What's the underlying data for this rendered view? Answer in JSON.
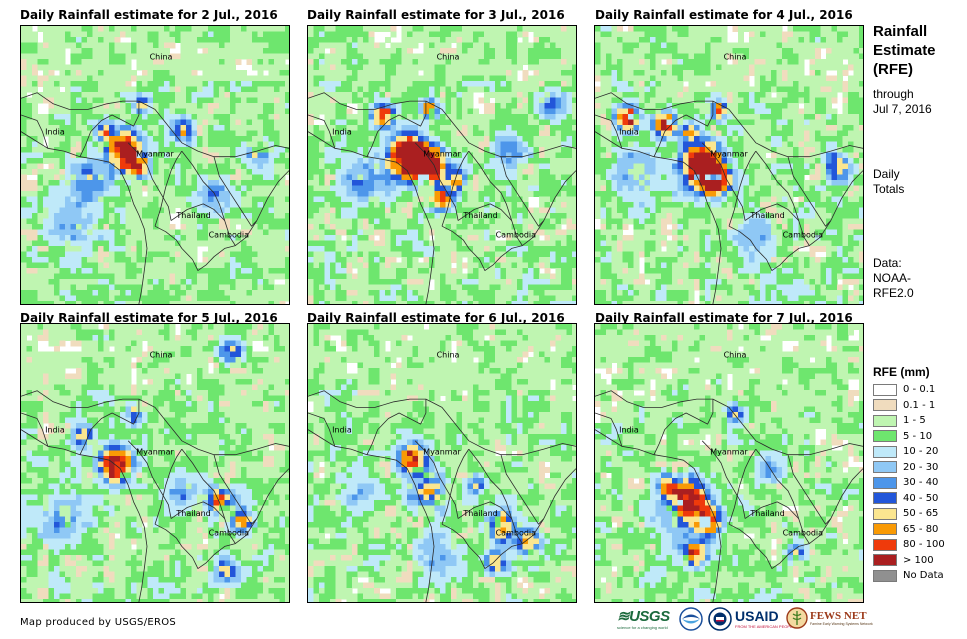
{
  "panels": [
    {
      "title": "Daily Rainfall estimate for 2 Jul., 2016",
      "seed": 11,
      "intensity": 1.0,
      "cores": [
        {
          "nx": 0.38,
          "ny": 0.44,
          "r": 0.075,
          "mm": 120
        },
        {
          "nx": 0.43,
          "ny": 0.5,
          "r": 0.05,
          "mm": 90
        },
        {
          "nx": 0.31,
          "ny": 0.37,
          "r": 0.04,
          "mm": 55
        },
        {
          "nx": 0.45,
          "ny": 0.28,
          "r": 0.035,
          "mm": 60
        },
        {
          "nx": 0.6,
          "ny": 0.37,
          "r": 0.05,
          "mm": 60
        },
        {
          "nx": 0.88,
          "ny": 0.45,
          "r": 0.06,
          "mm": 45
        },
        {
          "nx": 0.25,
          "ny": 0.55,
          "r": 0.09,
          "mm": 35
        },
        {
          "nx": 0.18,
          "ny": 0.7,
          "r": 0.12,
          "mm": 25
        },
        {
          "nx": 0.72,
          "ny": 0.6,
          "r": 0.08,
          "mm": 30
        }
      ],
      "labels": {
        "china": "China",
        "india": "India",
        "myanmar": "Myanmar",
        "thailand": "Thailand",
        "cambodia": "Cambodia"
      }
    },
    {
      "title": "Daily Rainfall estimate for 3 Jul., 2016",
      "seed": 23,
      "intensity": 1.1,
      "cores": [
        {
          "nx": 0.38,
          "ny": 0.47,
          "r": 0.09,
          "mm": 150
        },
        {
          "nx": 0.45,
          "ny": 0.5,
          "r": 0.07,
          "mm": 120
        },
        {
          "nx": 0.28,
          "ny": 0.32,
          "r": 0.05,
          "mm": 90
        },
        {
          "nx": 0.45,
          "ny": 0.3,
          "r": 0.04,
          "mm": 80
        },
        {
          "nx": 0.49,
          "ny": 0.62,
          "r": 0.05,
          "mm": 85
        },
        {
          "nx": 0.55,
          "ny": 0.55,
          "r": 0.05,
          "mm": 60
        },
        {
          "nx": 0.2,
          "ny": 0.55,
          "r": 0.1,
          "mm": 30
        },
        {
          "nx": 0.75,
          "ny": 0.45,
          "r": 0.08,
          "mm": 30
        },
        {
          "nx": 0.9,
          "ny": 0.28,
          "r": 0.06,
          "mm": 40
        }
      ],
      "labels": {
        "china": "China",
        "india": "India",
        "myanmar": "Myanmar",
        "thailand": "Thailand",
        "cambodia": "Cambodia"
      }
    },
    {
      "title": "Daily Rainfall estimate for 4 Jul., 2016",
      "seed": 37,
      "intensity": 1.1,
      "cores": [
        {
          "nx": 0.4,
          "ny": 0.5,
          "r": 0.09,
          "mm": 150
        },
        {
          "nx": 0.45,
          "ny": 0.55,
          "r": 0.06,
          "mm": 130
        },
        {
          "nx": 0.12,
          "ny": 0.33,
          "r": 0.05,
          "mm": 110
        },
        {
          "nx": 0.26,
          "ny": 0.35,
          "r": 0.05,
          "mm": 100
        },
        {
          "nx": 0.35,
          "ny": 0.38,
          "r": 0.04,
          "mm": 60
        },
        {
          "nx": 0.46,
          "ny": 0.3,
          "r": 0.04,
          "mm": 70
        },
        {
          "nx": 0.9,
          "ny": 0.5,
          "r": 0.06,
          "mm": 55
        },
        {
          "nx": 0.15,
          "ny": 0.52,
          "r": 0.1,
          "mm": 30
        },
        {
          "nx": 0.6,
          "ny": 0.75,
          "r": 0.1,
          "mm": 25
        }
      ],
      "labels": {
        "china": "China",
        "india": "India",
        "myanmar": "Myanmar",
        "thailand": "Thailand",
        "cambodia": "Cambodia"
      }
    },
    {
      "title": "Daily Rainfall estimate for 5 Jul., 2016",
      "seed": 41,
      "intensity": 1.0,
      "cores": [
        {
          "nx": 0.35,
          "ny": 0.5,
          "r": 0.07,
          "mm": 130
        },
        {
          "nx": 0.23,
          "ny": 0.4,
          "r": 0.05,
          "mm": 55
        },
        {
          "nx": 0.42,
          "ny": 0.32,
          "r": 0.04,
          "mm": 55
        },
        {
          "nx": 0.74,
          "ny": 0.63,
          "r": 0.06,
          "mm": 70
        },
        {
          "nx": 0.82,
          "ny": 0.7,
          "r": 0.05,
          "mm": 60
        },
        {
          "nx": 0.76,
          "ny": 0.88,
          "r": 0.05,
          "mm": 50
        },
        {
          "nx": 0.78,
          "ny": 0.1,
          "r": 0.05,
          "mm": 60
        },
        {
          "nx": 0.15,
          "ny": 0.7,
          "r": 0.1,
          "mm": 30
        },
        {
          "nx": 0.6,
          "ny": 0.6,
          "r": 0.08,
          "mm": 30
        }
      ],
      "labels": {
        "china": "China",
        "india": "India",
        "myanmar": "Myanmar",
        "thailand": "Thailand",
        "cambodia": "Cambodia"
      }
    },
    {
      "title": "Daily Rainfall estimate for 6 Jul., 2016",
      "seed": 53,
      "intensity": 0.95,
      "cores": [
        {
          "nx": 0.39,
          "ny": 0.48,
          "r": 0.06,
          "mm": 100
        },
        {
          "nx": 0.45,
          "ny": 0.6,
          "r": 0.08,
          "mm": 60
        },
        {
          "nx": 0.72,
          "ny": 0.72,
          "r": 0.07,
          "mm": 70
        },
        {
          "nx": 0.82,
          "ny": 0.78,
          "r": 0.06,
          "mm": 60
        },
        {
          "nx": 0.7,
          "ny": 0.85,
          "r": 0.05,
          "mm": 55
        },
        {
          "nx": 0.62,
          "ny": 0.57,
          "r": 0.04,
          "mm": 50
        },
        {
          "nx": 0.48,
          "ny": 0.82,
          "r": 0.1,
          "mm": 28
        },
        {
          "nx": 0.2,
          "ny": 0.6,
          "r": 0.08,
          "mm": 25
        }
      ],
      "labels": {
        "china": "China",
        "india": "India",
        "myanmar": "Myanmar",
        "thailand": "Thailand",
        "cambodia": "Cambodia"
      }
    },
    {
      "title": "Daily Rainfall estimate for 7 Jul., 2016",
      "seed": 67,
      "intensity": 1.0,
      "cores": [
        {
          "nx": 0.35,
          "ny": 0.62,
          "r": 0.07,
          "mm": 120
        },
        {
          "nx": 0.42,
          "ny": 0.7,
          "r": 0.06,
          "mm": 90
        },
        {
          "nx": 0.37,
          "ny": 0.82,
          "r": 0.05,
          "mm": 90
        },
        {
          "nx": 0.27,
          "ny": 0.58,
          "r": 0.05,
          "mm": 60
        },
        {
          "nx": 0.75,
          "ny": 0.82,
          "r": 0.04,
          "mm": 55
        },
        {
          "nx": 0.52,
          "ny": 0.32,
          "r": 0.04,
          "mm": 55
        },
        {
          "nx": 0.33,
          "ny": 0.68,
          "r": 0.12,
          "mm": 35
        },
        {
          "nx": 0.65,
          "ny": 0.52,
          "r": 0.07,
          "mm": 30
        }
      ],
      "labels": {
        "china": "China",
        "india": "India",
        "myanmar": "Myanmar",
        "thailand": "Thailand",
        "cambodia": "Cambodia"
      }
    }
  ],
  "side": {
    "title_line1": "Rainfall",
    "title_line2": "Estimate",
    "title_line3": "(RFE)",
    "through": "through",
    "date": "Jul 7, 2016",
    "totals_line1": "Daily",
    "totals_line2": "Totals",
    "data_line1": "Data:",
    "data_line2": "NOAA-",
    "data_line3": "RFE2.0"
  },
  "legend": {
    "title": "RFE (mm)",
    "items": [
      {
        "label": "0 - 0.1",
        "color": "#ffffff"
      },
      {
        "label": "0.1 - 1",
        "color": "#f0dcbe"
      },
      {
        "label": "1 - 5",
        "color": "#bff5b1"
      },
      {
        "label": "5 - 10",
        "color": "#6ee66e"
      },
      {
        "label": "10 - 20",
        "color": "#bfe9f9"
      },
      {
        "label": "20 - 30",
        "color": "#8fc8f5"
      },
      {
        "label": "30 - 40",
        "color": "#4d96ea"
      },
      {
        "label": "40 - 50",
        "color": "#2256d9"
      },
      {
        "label": "50 - 65",
        "color": "#fbe690"
      },
      {
        "label": "65 - 80",
        "color": "#f99a05"
      },
      {
        "label": "80 - 100",
        "color": "#ef3a0b"
      },
      {
        "label": "> 100",
        "color": "#aa1f20"
      },
      {
        "label": "No Data",
        "color": "#909090"
      }
    ]
  },
  "credit": "Map produced by USGS/EROS",
  "logos": {
    "usgs": "≋USGS",
    "usgs_tagline": "science for a changing world",
    "usaid": "USAID",
    "usaid_tagline": "FROM THE AMERICAN PEOPLE",
    "fews": "FEWS NET",
    "fews_tagline": "Famine Early Warning Systems Network"
  },
  "colors": {
    "border": "#2b2b2b",
    "frame": "#000000"
  }
}
